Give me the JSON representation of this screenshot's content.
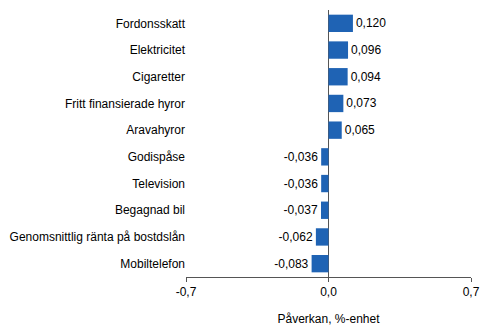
{
  "chart_data": {
    "type": "bar",
    "orientation": "horizontal",
    "categories": [
      "Fordonsskatt",
      "Elektricitet",
      "Cigaretter",
      "Fritt finansierade hyror",
      "Aravahyror",
      "Godispåse",
      "Television",
      "Begagnad bil",
      "Genomsnittlig ränta på bostdslån",
      "Mobiltelefon"
    ],
    "values": [
      0.12,
      0.096,
      0.094,
      0.073,
      0.065,
      -0.036,
      -0.036,
      -0.037,
      -0.062,
      -0.083
    ],
    "value_labels": [
      "0,120",
      "0,096",
      "0,094",
      "0,073",
      "0,065",
      "-0,036",
      "-0,036",
      "-0,037",
      "-0,062",
      "-0,083"
    ],
    "data_labels": true,
    "color": "#1f63b4",
    "x_label": "Påverkan, %-enhet",
    "xlim": [
      -0.7,
      0.7
    ],
    "xticks": [
      {
        "value": -0.7,
        "label": "-0,7"
      },
      {
        "value": 0,
        "label": "0,0"
      },
      {
        "value": 0.7,
        "label": "0,7"
      }
    ],
    "grid": true
  }
}
